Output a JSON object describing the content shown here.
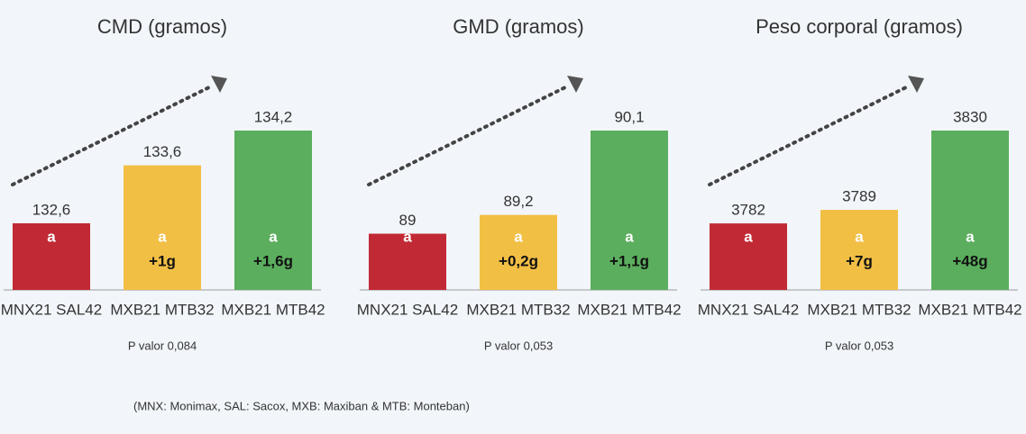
{
  "chart_data": [
    {
      "type": "bar",
      "title": "CMD (gramos)",
      "categories": [
        "MNX21 SAL42",
        "MXB21 MTB32",
        "MXB21 MTB42"
      ],
      "values": [
        132.6,
        133.6,
        134.2
      ],
      "value_labels": [
        "132,6",
        "133,6",
        "134,2"
      ],
      "colors": [
        "#c12a35",
        "#f2bf45",
        "#5bae5e"
      ],
      "ylim": [
        131.45,
        134.2
      ],
      "significance": [
        "a",
        "a",
        "a"
      ],
      "differences": [
        null,
        "+1g",
        "+1,6g"
      ],
      "p_value": "P valor 0,084"
    },
    {
      "type": "bar",
      "title": "GMD (gramos)",
      "categories": [
        "MNX21 SAL42",
        "MXB21 MTB32",
        "MXB21 MTB42"
      ],
      "values": [
        89,
        89.2,
        90.1
      ],
      "value_labels": [
        "89",
        "89,2",
        "90,1"
      ],
      "colors": [
        "#c12a35",
        "#f2bf45",
        "#5bae5e"
      ],
      "ylim": [
        88.4,
        90.1
      ],
      "significance": [
        "a",
        "a",
        "a"
      ],
      "differences": [
        null,
        "+0,2g",
        "+1,1g"
      ],
      "p_value": "P valor 0,053"
    },
    {
      "type": "bar",
      "title": "Peso corporal (gramos)",
      "categories": [
        "MNX21 SAL42",
        "MXB21 MTB32",
        "MXB21 MTB42"
      ],
      "values": [
        3782,
        3789,
        3830
      ],
      "colors": [
        "#c12a35",
        "#f2bf45",
        "#5bae5e"
      ],
      "ylim": [
        3747.6,
        3830
      ],
      "significance": [
        "a",
        "a",
        "a"
      ],
      "differences": [
        null,
        "+7g",
        "+48g"
      ],
      "p_value": "P valor 0,053"
    }
  ],
  "footnote": "(MNX: Monimax, SAL: Sacox, MXB: Maxiban & MTB: Monteban)"
}
